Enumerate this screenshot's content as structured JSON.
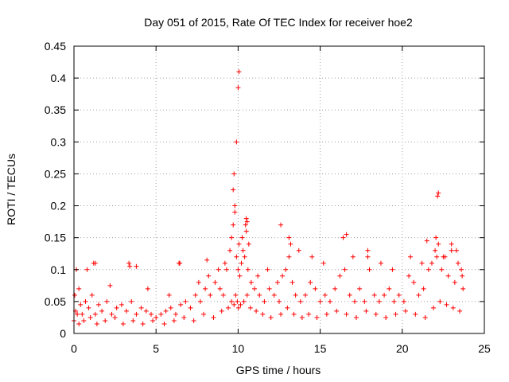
{
  "chart_data": {
    "type": "scatter",
    "title": "Day 051 of 2015, Rate Of TEC Index for receiver hoe2",
    "xlabel": "GPS time / hours",
    "ylabel": "ROTI / TECUs",
    "xlim": [
      0,
      25
    ],
    "ylim": [
      0,
      0.45
    ],
    "xticks": [
      0,
      5,
      10,
      15,
      20,
      25
    ],
    "xtick_labels": [
      "0",
      "5",
      "10",
      "15",
      "20",
      "25"
    ],
    "yticks": [
      0,
      0.05,
      0.1,
      0.15,
      0.2,
      0.25,
      0.3,
      0.35,
      0.4,
      0.45
    ],
    "ytick_labels": [
      "0",
      "0.05",
      "0.1",
      "0.15",
      "0.2",
      "0.25",
      "0.3",
      "0.35",
      "0.4",
      "0.45"
    ],
    "grid": true,
    "marker": "plus",
    "color": "#ff0000",
    "series": [
      {
        "x": [
          0.0,
          0.05,
          0.1,
          0.2,
          0.3,
          0.4,
          0.5,
          0.7,
          0.9,
          1.1,
          1.3,
          1.5,
          1.7,
          2.0,
          2.3,
          2.6,
          2.9,
          3.2,
          3.5,
          3.8,
          4.1,
          4.4,
          4.7,
          5.0,
          5.3,
          5.6,
          5.9,
          6.2,
          6.5,
          6.8,
          7.1,
          7.4,
          7.7,
          8.0,
          8.3,
          8.6,
          8.9,
          9.1,
          9.3,
          9.5,
          9.6,
          9.7,
          9.8,
          9.9,
          10.0,
          10.05,
          10.1,
          10.2,
          10.3,
          10.4,
          10.5,
          10.6,
          10.8,
          11.0,
          11.3,
          11.6,
          11.9,
          12.2,
          12.5,
          12.7,
          12.9,
          13.1,
          13.3,
          13.5,
          13.8,
          14.1,
          14.4,
          14.7,
          15.0,
          15.3,
          15.6,
          15.9,
          16.2,
          16.5,
          16.8,
          17.1,
          17.4,
          17.7,
          18.0,
          18.3,
          18.6,
          18.9,
          19.2,
          19.5,
          19.8,
          20.1,
          20.4,
          20.7,
          21.0,
          21.3,
          21.6,
          21.8,
          22.0,
          22.1,
          22.2,
          22.4,
          22.6,
          22.8,
          23.0,
          23.2,
          23.4,
          23.6,
          23.7,
          0.3,
          0.6,
          1.0,
          1.4,
          1.9,
          2.5,
          3.0,
          3.6,
          4.2,
          4.8,
          5.5,
          6.1,
          6.7,
          7.3,
          7.9,
          8.5,
          9.0,
          9.4,
          9.6,
          9.75,
          9.85,
          9.95,
          10.02,
          10.15,
          10.35,
          10.55,
          10.75,
          11.1,
          11.5,
          12.0,
          12.6,
          13.0,
          13.4,
          13.9,
          14.3,
          14.8,
          15.4,
          16.0,
          16.6,
          17.2,
          17.8,
          18.4,
          19.0,
          19.6,
          20.2,
          20.8,
          21.4,
          21.9,
          22.3,
          22.7,
          23.1,
          23.5,
          0.8,
          1.2,
          2.2,
          3.4,
          4.5,
          5.8,
          6.4,
          7.6,
          8.2,
          8.8,
          9.2,
          10.25,
          10.45,
          10.65,
          11.2,
          11.8,
          12.4,
          13.2,
          13.7,
          14.5,
          15.2,
          16.4,
          17.0,
          17.9,
          18.7,
          19.4,
          20.5,
          21.2,
          22.05,
          22.5,
          23.3,
          23.65,
          9.7,
          9.75,
          9.8,
          9.9,
          10.0,
          10.05,
          10.5,
          10.55,
          12.6,
          13.1,
          16.6,
          17.9,
          22.15,
          22.2,
          21.5,
          23.0,
          0.15,
          1.3,
          3.35,
          3.8,
          6.45,
          8.1
        ],
        "y": [
          0.02,
          0.06,
          0.035,
          0.03,
          0.07,
          0.045,
          0.03,
          0.05,
          0.04,
          0.06,
          0.03,
          0.045,
          0.035,
          0.05,
          0.03,
          0.04,
          0.045,
          0.035,
          0.05,
          0.03,
          0.04,
          0.035,
          0.03,
          0.025,
          0.03,
          0.035,
          0.04,
          0.03,
          0.045,
          0.05,
          0.04,
          0.06,
          0.05,
          0.07,
          0.06,
          0.08,
          0.07,
          0.06,
          0.1,
          0.13,
          0.15,
          0.17,
          0.19,
          0.12,
          0.1,
          0.14,
          0.09,
          0.11,
          0.13,
          0.12,
          0.16,
          0.1,
          0.08,
          0.07,
          0.06,
          0.05,
          0.07,
          0.06,
          0.05,
          0.09,
          0.1,
          0.12,
          0.08,
          0.06,
          0.05,
          0.06,
          0.08,
          0.07,
          0.05,
          0.06,
          0.05,
          0.07,
          0.09,
          0.1,
          0.06,
          0.05,
          0.07,
          0.05,
          0.1,
          0.06,
          0.05,
          0.06,
          0.07,
          0.05,
          0.06,
          0.05,
          0.09,
          0.08,
          0.06,
          0.07,
          0.1,
          0.11,
          0.13,
          0.12,
          0.14,
          0.1,
          0.12,
          0.09,
          0.13,
          0.08,
          0.11,
          0.1,
          0.07,
          0.015,
          0.02,
          0.025,
          0.015,
          0.02,
          0.025,
          0.015,
          0.02,
          0.015,
          0.02,
          0.015,
          0.02,
          0.025,
          0.02,
          0.03,
          0.025,
          0.035,
          0.04,
          0.05,
          0.045,
          0.06,
          0.05,
          0.04,
          0.045,
          0.05,
          0.06,
          0.04,
          0.035,
          0.03,
          0.025,
          0.03,
          0.04,
          0.03,
          0.025,
          0.03,
          0.025,
          0.03,
          0.035,
          0.03,
          0.025,
          0.035,
          0.03,
          0.025,
          0.03,
          0.035,
          0.03,
          0.025,
          0.04,
          0.05,
          0.045,
          0.04,
          0.035,
          0.1,
          0.11,
          0.075,
          0.105,
          0.07,
          0.06,
          0.11,
          0.08,
          0.09,
          0.1,
          0.11,
          0.15,
          0.17,
          0.14,
          0.09,
          0.1,
          0.08,
          0.14,
          0.13,
          0.12,
          0.11,
          0.15,
          0.12,
          0.13,
          0.11,
          0.1,
          0.12,
          0.11,
          0.15,
          0.12,
          0.13,
          0.09,
          0.225,
          0.25,
          0.2,
          0.3,
          0.385,
          0.41,
          0.18,
          0.175,
          0.17,
          0.15,
          0.155,
          0.12,
          0.215,
          0.22,
          0.145,
          0.14,
          0.1,
          0.11,
          0.11,
          0.105,
          0.11,
          0.115
        ]
      }
    ]
  }
}
